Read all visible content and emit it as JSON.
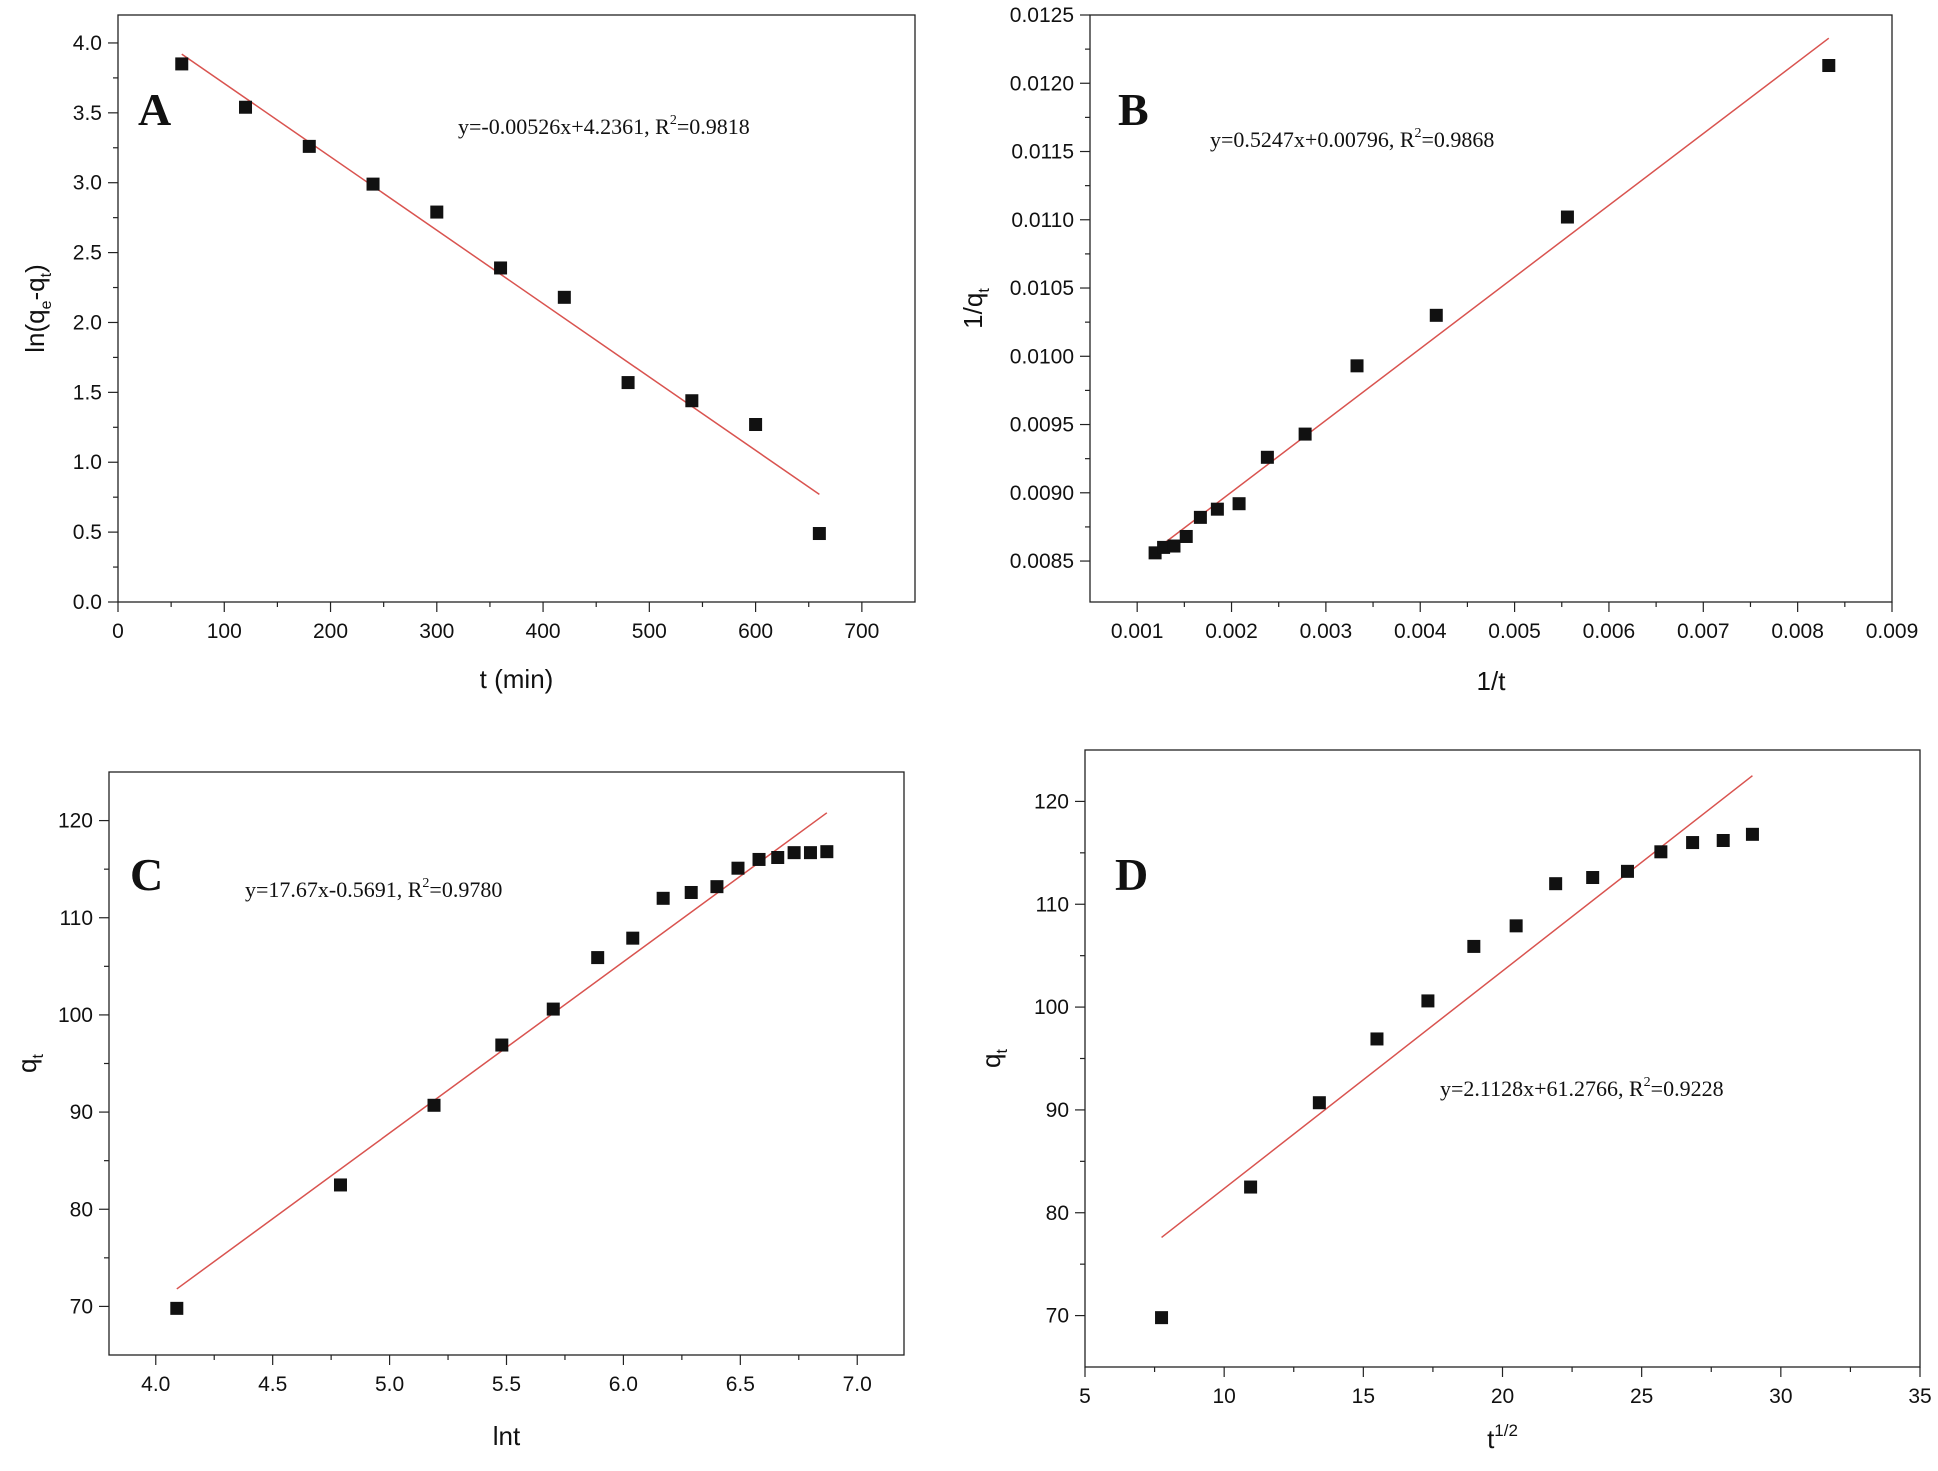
{
  "chart_data": [
    {
      "panel": "A",
      "type": "scatter",
      "xlabel": "t (min)",
      "ylabel": {
        "main": "ln(q",
        "sub1": "e",
        "mid": "-q",
        "sub2": "t",
        "end": ")"
      },
      "equation": {
        "pre": "y=-0.00526x+4.2361, R",
        "sup": "2",
        "post": "=0.9818"
      },
      "xlim": [
        0,
        750
      ],
      "ylim": [
        0,
        4.2
      ],
      "xticks": [
        0,
        100,
        200,
        300,
        400,
        500,
        600,
        700
      ],
      "xtick_labels": [
        "0",
        "100",
        "200",
        "300",
        "400",
        "500",
        "600",
        "700"
      ],
      "yticks": [
        0,
        0.5,
        1.0,
        1.5,
        2.0,
        2.5,
        3.0,
        3.5,
        4.0
      ],
      "ytick_labels": [
        "0.0",
        "0.5",
        "1.0",
        "1.5",
        "2.0",
        "2.5",
        "3.0",
        "3.5",
        "4.0"
      ],
      "points": {
        "x": [
          60,
          120,
          180,
          240,
          300,
          360,
          420,
          480,
          540,
          600,
          660
        ],
        "y": [
          3.85,
          3.54,
          3.26,
          2.99,
          2.79,
          2.39,
          2.18,
          1.57,
          1.44,
          1.27,
          0.49
        ]
      },
      "fit": {
        "x": [
          60,
          660
        ],
        "y": [
          3.92,
          0.77
        ]
      }
    },
    {
      "panel": "B",
      "type": "scatter",
      "xlabel": "1/t",
      "ylabel": {
        "main": "1/q",
        "sub1": "t"
      },
      "equation": {
        "pre": "y=0.5247x+0.00796, R",
        "sup": "2",
        "post": "=0.9868"
      },
      "xlim": [
        0.0005,
        0.009
      ],
      "ylim": [
        0.0082,
        0.0125
      ],
      "xticks": [
        0.001,
        0.002,
        0.003,
        0.004,
        0.005,
        0.006,
        0.007,
        0.008,
        0.009
      ],
      "xtick_labels": [
        "0.001",
        "0.002",
        "0.003",
        "0.004",
        "0.005",
        "0.006",
        "0.007",
        "0.008",
        "0.009"
      ],
      "yticks": [
        0.0085,
        0.009,
        0.0095,
        0.01,
        0.0105,
        0.011,
        0.0115,
        0.012,
        0.0125
      ],
      "ytick_labels": [
        "0.0085",
        "0.0090",
        "0.0095",
        "0.0100",
        "0.0105",
        "0.0110",
        "0.0115",
        "0.0120",
        "0.0125"
      ],
      "points": {
        "x": [
          0.00119,
          0.00128,
          0.00139,
          0.00152,
          0.00167,
          0.00185,
          0.00208,
          0.00238,
          0.00278,
          0.00333,
          0.00417,
          0.00556,
          0.00833
        ],
        "y": [
          0.00856,
          0.0086,
          0.00861,
          0.00868,
          0.00882,
          0.00888,
          0.00892,
          0.00926,
          0.00943,
          0.00993,
          0.0103,
          0.01102,
          0.01213
        ]
      },
      "fit": {
        "x": [
          0.00119,
          0.00833
        ],
        "y": [
          0.00858,
          0.01233
        ]
      }
    },
    {
      "panel": "C",
      "type": "scatter",
      "xlabel": "lnt",
      "ylabel": {
        "main": "q",
        "sub1": "t"
      },
      "equation": {
        "pre": "y=17.67x-0.5691, R",
        "sup": "2",
        "post": "=0.9780"
      },
      "xlim": [
        3.8,
        7.2
      ],
      "ylim": [
        65,
        125
      ],
      "xticks": [
        4.0,
        4.5,
        5.0,
        5.5,
        6.0,
        6.5,
        7.0
      ],
      "xtick_labels": [
        "4.0",
        "4.5",
        "5.0",
        "5.5",
        "6.0",
        "6.5",
        "7.0"
      ],
      "yticks": [
        70,
        80,
        90,
        100,
        110,
        120
      ],
      "ytick_labels": [
        "70",
        "80",
        "90",
        "100",
        "110",
        "120"
      ],
      "points": {
        "x": [
          4.09,
          4.79,
          5.19,
          5.48,
          5.7,
          5.89,
          6.04,
          6.17,
          6.29,
          6.4,
          6.49,
          6.58,
          6.66,
          6.73,
          6.8,
          6.87
        ],
        "y": [
          69.8,
          82.5,
          90.7,
          96.9,
          100.6,
          105.9,
          107.9,
          112.0,
          112.6,
          113.2,
          115.1,
          116.0,
          116.2,
          116.7,
          116.7,
          116.8
        ]
      },
      "fit": {
        "x": [
          4.09,
          6.87
        ],
        "y": [
          71.8,
          120.8
        ]
      }
    },
    {
      "panel": "D",
      "type": "scatter",
      "xlabel": {
        "main": "t",
        "sup": "1/2"
      },
      "ylabel": {
        "main": "q",
        "sub1": "t"
      },
      "equation": {
        "pre": "y=2.1128x+61.2766, R",
        "sup": "2",
        "post": "=0.9228"
      },
      "xlim": [
        5,
        35
      ],
      "ylim": [
        65,
        125
      ],
      "xticks": [
        5,
        10,
        15,
        20,
        25,
        30,
        35
      ],
      "xtick_labels": [
        "5",
        "10",
        "15",
        "20",
        "25",
        "30",
        "35"
      ],
      "yticks": [
        70,
        80,
        90,
        100,
        110,
        120
      ],
      "ytick_labels": [
        "70",
        "80",
        "90",
        "100",
        "110",
        "120"
      ],
      "points": {
        "x": [
          7.75,
          10.95,
          13.42,
          15.49,
          17.32,
          18.97,
          20.49,
          21.91,
          23.24,
          24.49,
          25.69,
          26.83,
          27.93,
          28.98
        ],
        "y": [
          69.8,
          82.5,
          90.7,
          96.9,
          100.6,
          105.9,
          107.9,
          112.0,
          112.6,
          113.2,
          115.1,
          116.0,
          116.2,
          116.8
        ]
      },
      "fit": {
        "x": [
          7.75,
          28.98
        ],
        "y": [
          77.6,
          122.5
        ]
      }
    }
  ]
}
